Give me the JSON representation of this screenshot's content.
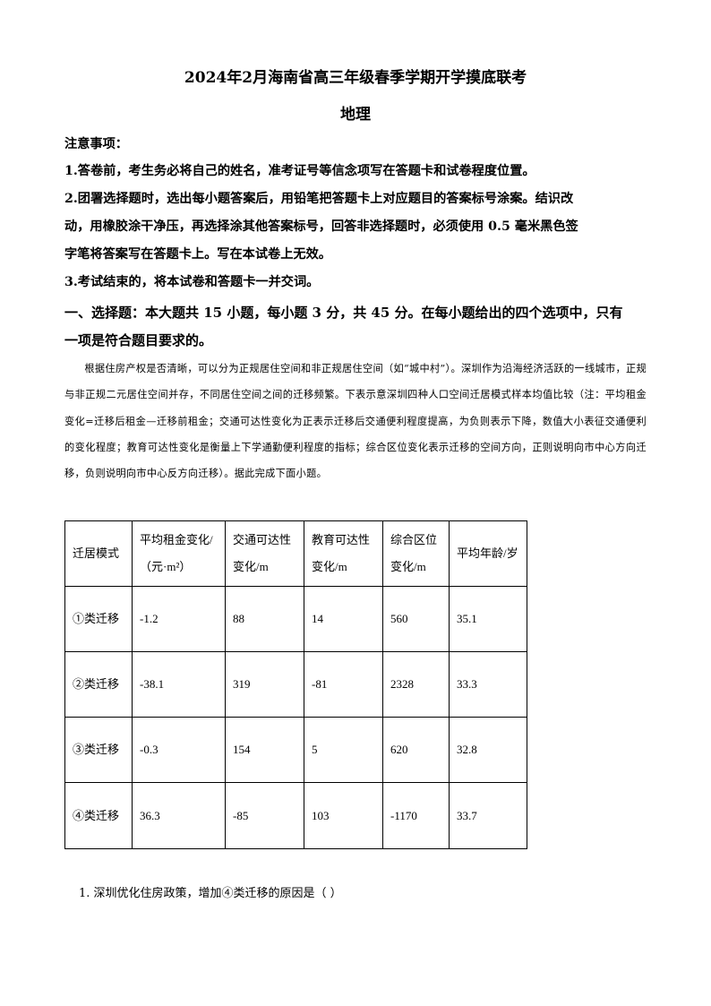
{
  "title": "2024年2月海南省高三年级春季学期开学摸底联考",
  "subject": "地理",
  "notes": {
    "heading": "注意事项：",
    "items": [
      "1.答卷前，考生务必将自己的姓名，准考证号等信念项写在答题卡和试卷程度位置。",
      "2.团署选择题时，选出每小题答案后，用铅笔把答题卡上对应题目的答案标号涂案。结识改",
      "动，用橡胶涂干净压，再选择涂其他答案标号，回答非选择题时，必须使用 0.5 毫米黑色签",
      "字笔将答案写在答题卡上。写在本试卷上无效。",
      "3.考试结束的，将本试卷和答题卡一并交词。"
    ]
  },
  "section": [
    "一、选择题：本大题共 15 小题，每小题 3 分，共 45 分。在每小题给出的四个选项中，只有",
    "一项是符合题目要求的。"
  ],
  "passage": "根据住房产权是否清晰，可以分为正规居住空间和非正规居住空间（如“城中村”）。深圳作为沿海经济活跃的一线城市，正规与非正规二元居住空间并存，不同居住空间之间的迁移频繁。下表示意深圳四种人口空间迁居模式样本均值比较（注：平均租金变化=迁移后租金—迁移前租金；交通可达性变化为正表示迁移后交通便利程度提高，为负则表示下降，数值大小表征交通便利的变化程度；教育可达性变化是衡量上下学通勤便利程度的指标；综合区位变化表示迁移的空间方向，正则说明向市中心方向迁移，负则说明向市中心反方向迁移）。据此完成下面小题。",
  "table": {
    "headers": [
      "迁居模式",
      "平均租金变化/（元·m²）",
      "交通可达性变化/m",
      "教育可达性变化/m",
      "综合区位变化/m",
      "平均年龄/岁"
    ],
    "rows": [
      [
        "①类迁移",
        "-1.2",
        "88",
        "14",
        "560",
        "35.1"
      ],
      [
        "②类迁移",
        "-38.1",
        "319",
        "-81",
        "2328",
        "33.3"
      ],
      [
        "③类迁移",
        "-0.3",
        "154",
        "5",
        "620",
        "32.8"
      ],
      [
        "④类迁移",
        "36.3",
        "-85",
        "103",
        "-1170",
        "33.7"
      ]
    ]
  },
  "question": "1. 深圳优化住房政策，增加④类迁移的原因是（    ）"
}
